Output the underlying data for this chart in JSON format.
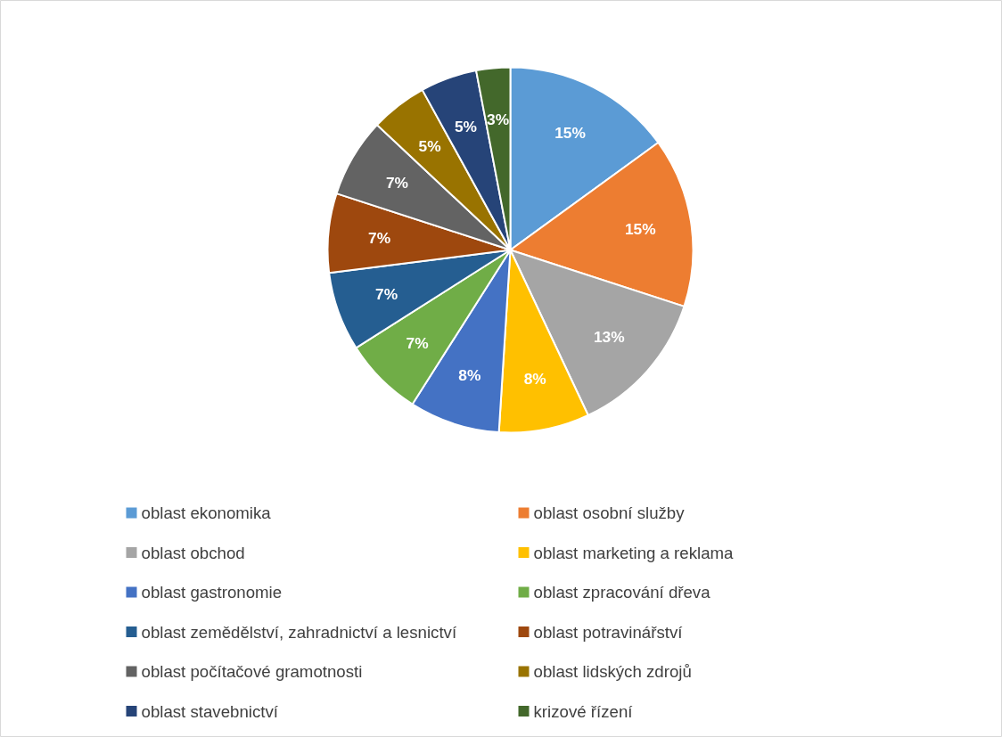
{
  "chart_data": {
    "type": "pie",
    "categories": [
      "oblast ekonomika",
      "oblast osobní služby",
      "oblast obchod",
      "oblast marketing a reklama",
      "oblast gastronomie",
      "oblast zpracování dřeva",
      "oblast zemědělství, zahradnictví a lesnictví",
      "oblast potravinářství",
      "oblast počítačové gramotnosti",
      "oblast lidských zdrojů",
      "oblast stavebnictví",
      "krizové řízení"
    ],
    "values": [
      15,
      15,
      13,
      8,
      8,
      7,
      7,
      7,
      7,
      5,
      5,
      3
    ],
    "value_labels": [
      "15%",
      "15%",
      "13%",
      "8%",
      "8%",
      "7%",
      "7%",
      "7%",
      "7%",
      "5%",
      "5%",
      "3%"
    ],
    "colors": [
      "#5b9bd5",
      "#ed7d31",
      "#a5a5a5",
      "#ffc000",
      "#4472c4",
      "#70ad47",
      "#255e91",
      "#9e480e",
      "#636363",
      "#997300",
      "#264478",
      "#43682b"
    ],
    "legend": "bottom"
  }
}
